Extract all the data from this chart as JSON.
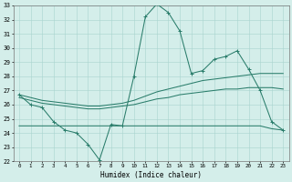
{
  "x": [
    0,
    1,
    2,
    3,
    4,
    5,
    6,
    7,
    8,
    9,
    10,
    11,
    12,
    13,
    14,
    15,
    16,
    17,
    18,
    19,
    20,
    21,
    22,
    23
  ],
  "main_line": [
    26.7,
    26.0,
    25.8,
    24.8,
    24.2,
    24.0,
    23.2,
    22.1,
    24.6,
    24.5,
    28.0,
    32.2,
    33.1,
    32.5,
    31.2,
    28.2,
    28.4,
    29.2,
    29.4,
    29.8,
    28.5,
    27.0,
    24.8,
    24.2
  ],
  "trend_high": [
    26.7,
    26.5,
    26.3,
    26.2,
    26.1,
    26.0,
    25.9,
    25.9,
    26.0,
    26.1,
    26.3,
    26.6,
    26.9,
    27.1,
    27.3,
    27.5,
    27.7,
    27.8,
    27.9,
    28.0,
    28.1,
    28.2,
    28.2,
    28.2
  ],
  "trend_low": [
    26.5,
    26.3,
    26.1,
    26.0,
    25.9,
    25.8,
    25.7,
    25.7,
    25.8,
    25.9,
    26.0,
    26.2,
    26.4,
    26.5,
    26.7,
    26.8,
    26.9,
    27.0,
    27.1,
    27.1,
    27.2,
    27.2,
    27.2,
    27.1
  ],
  "flat_line": [
    24.5,
    24.5,
    24.5,
    24.5,
    24.5,
    24.5,
    24.5,
    24.5,
    24.5,
    24.5,
    24.5,
    24.5,
    24.5,
    24.5,
    24.5,
    24.5,
    24.5,
    24.5,
    24.5,
    24.5,
    24.5,
    24.5,
    24.3,
    24.2
  ],
  "color": "#2a7d6b",
  "bg_color": "#d4eeea",
  "grid_color": "#a8d4ce",
  "ylim_min": 22,
  "ylim_max": 33,
  "yticks": [
    22,
    23,
    24,
    25,
    26,
    27,
    28,
    29,
    30,
    31,
    32,
    33
  ],
  "xticks": [
    0,
    1,
    2,
    3,
    4,
    5,
    6,
    7,
    8,
    9,
    10,
    11,
    12,
    13,
    14,
    15,
    16,
    17,
    18,
    19,
    20,
    21,
    22,
    23
  ],
  "xlabel": "Humidex (Indice chaleur)"
}
